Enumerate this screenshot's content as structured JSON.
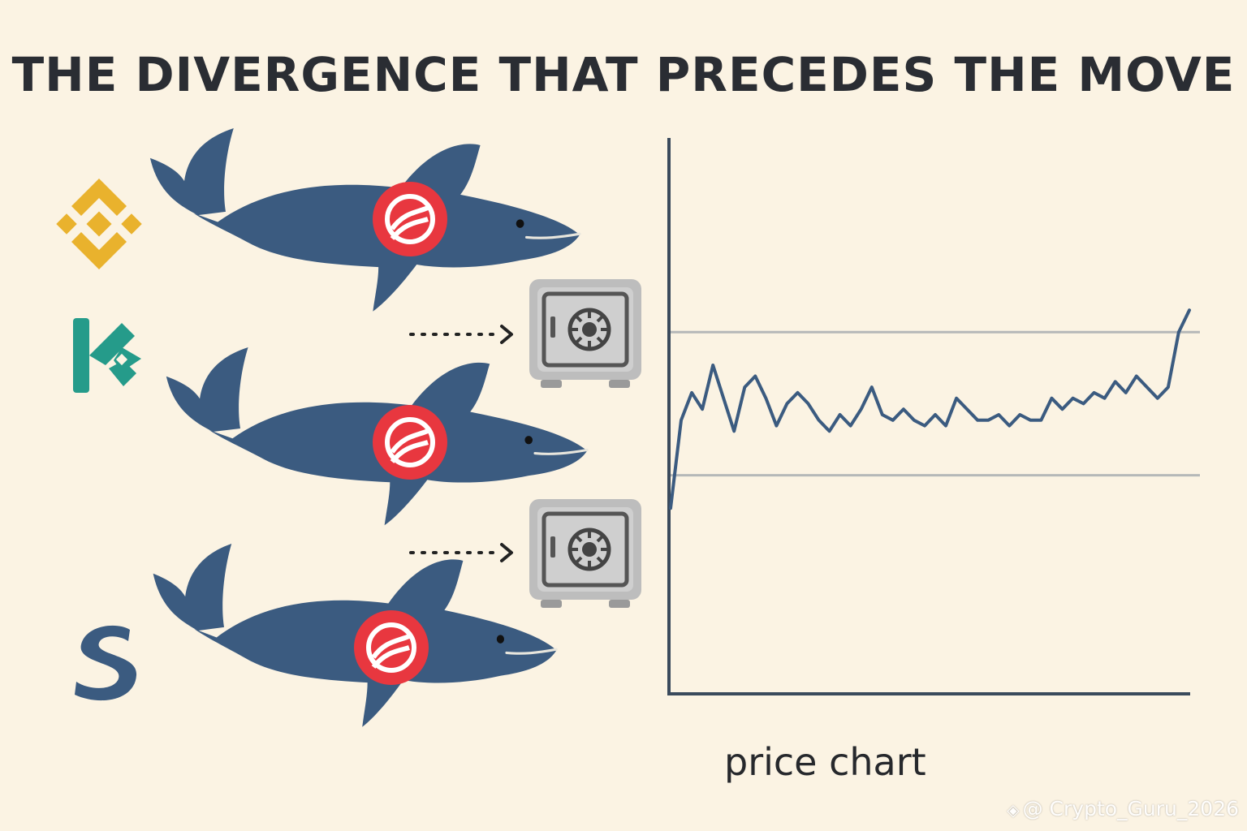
{
  "title": "THE DIVERGENCE THAT PRECEDES THE MOVE",
  "chart_label": "price chart",
  "watermark": "@ Crypto_Guru_2026",
  "colors": {
    "background": "#fbf3e3",
    "whale": "#3b5b80",
    "token_badge": "#e8373f",
    "binance": "#e9b22d",
    "kucoin": "#259b8a",
    "third_exchange": "#3b5b80",
    "price_line": "#3b5b80",
    "range_line": "#b5b8b8",
    "safe": "#b9b9b9"
  },
  "exchanges": [
    {
      "icon": "binance-logo-icon"
    },
    {
      "icon": "kucoin-logo-icon"
    },
    {
      "icon": "s-exchange-logo-icon"
    }
  ],
  "whales": [
    {
      "icon": "whale-icon",
      "badge": "token-badge-icon"
    },
    {
      "icon": "whale-icon",
      "badge": "token-badge-icon"
    },
    {
      "icon": "whale-icon",
      "badge": "token-badge-icon"
    }
  ],
  "vaults": [
    {
      "icon": "safe-vault-icon",
      "arrow": "dotted-arrow-icon"
    },
    {
      "icon": "safe-vault-icon",
      "arrow": "dotted-arrow-icon"
    }
  ],
  "chart_data": {
    "type": "line",
    "title": "",
    "xlabel": "",
    "ylabel": "",
    "xlim": [
      0,
      100
    ],
    "ylim": [
      0,
      100
    ],
    "grid": false,
    "reference_lines_y": [
      65,
      39
    ],
    "series": [
      {
        "values": [
          [
            0,
            33
          ],
          [
            2,
            49
          ],
          [
            4,
            54
          ],
          [
            6,
            51
          ],
          [
            8,
            59
          ],
          [
            10,
            53
          ],
          [
            12,
            47
          ],
          [
            14,
            55
          ],
          [
            16,
            57
          ],
          [
            18,
            53
          ],
          [
            20,
            48
          ],
          [
            22,
            52
          ],
          [
            24,
            54
          ],
          [
            26,
            52
          ],
          [
            28,
            49
          ],
          [
            30,
            47
          ],
          [
            32,
            50
          ],
          [
            34,
            48
          ],
          [
            36,
            51
          ],
          [
            38,
            55
          ],
          [
            40,
            50
          ],
          [
            42,
            49
          ],
          [
            44,
            51
          ],
          [
            46,
            49
          ],
          [
            48,
            48
          ],
          [
            50,
            50
          ],
          [
            52,
            48
          ],
          [
            54,
            53
          ],
          [
            56,
            51
          ],
          [
            58,
            49
          ],
          [
            60,
            49
          ],
          [
            62,
            50
          ],
          [
            64,
            48
          ],
          [
            66,
            50
          ],
          [
            68,
            49
          ],
          [
            70,
            49
          ],
          [
            72,
            53
          ],
          [
            74,
            51
          ],
          [
            76,
            53
          ],
          [
            78,
            52
          ],
          [
            80,
            54
          ],
          [
            82,
            53
          ],
          [
            84,
            56
          ],
          [
            86,
            54
          ],
          [
            88,
            57
          ],
          [
            90,
            55
          ],
          [
            92,
            53
          ],
          [
            94,
            55
          ],
          [
            96,
            65
          ],
          [
            98,
            69
          ]
        ]
      }
    ]
  }
}
